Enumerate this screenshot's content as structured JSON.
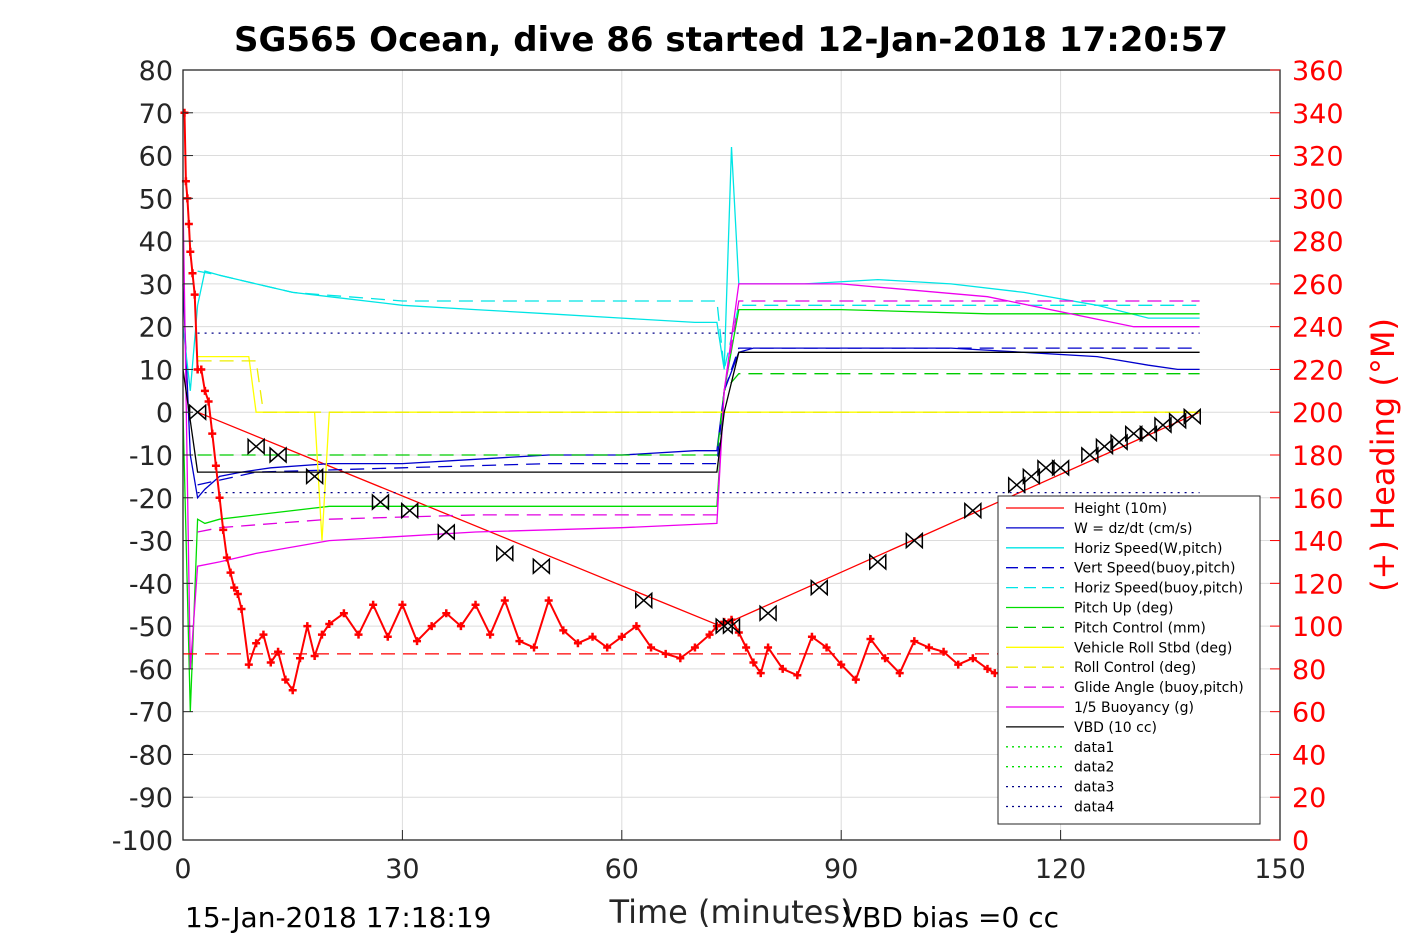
{
  "chart_data": {
    "type": "line",
    "title": "SG565 Ocean, dive 86 started 12-Jan-2018 17:20:57",
    "xlabel": "Time (minutes)",
    "ylabel_right": "(+) Heading (°M)",
    "footer_left": "15-Jan-2018 17:18:19",
    "footer_right": "VBD bias =0 cc",
    "xlim": [
      0,
      150
    ],
    "ylim_left": [
      -100,
      80
    ],
    "ylim_right": [
      0,
      360
    ],
    "x_ticks": [
      "0",
      "30",
      "60",
      "90",
      "120",
      "150"
    ],
    "x_tick_values": [
      0,
      30,
      60,
      90,
      120,
      150
    ],
    "y_left_ticks": [
      "80",
      "70",
      "60",
      "50",
      "40",
      "30",
      "20",
      "10",
      "0",
      "-10",
      "-20",
      "-30",
      "-40",
      "-50",
      "-60",
      "-70",
      "-80",
      "-90",
      "-100"
    ],
    "y_left_tick_values": [
      80,
      70,
      60,
      50,
      40,
      30,
      20,
      10,
      0,
      -10,
      -20,
      -30,
      -40,
      -50,
      -60,
      -70,
      -80,
      -90,
      -100
    ],
    "y_right_ticks": [
      "360",
      "340",
      "320",
      "300",
      "280",
      "260",
      "240",
      "220",
      "200",
      "180",
      "160",
      "140",
      "120",
      "100",
      "80",
      "60",
      "40",
      "20",
      "0"
    ],
    "y_right_tick_values": [
      360,
      340,
      320,
      300,
      280,
      260,
      240,
      220,
      200,
      180,
      160,
      140,
      120,
      100,
      80,
      60,
      40,
      20,
      0
    ],
    "grid": true,
    "legend_position": "bottom-right",
    "colors": {
      "height": "#ff0000",
      "w": "#0000cc",
      "horiz_w": "#00e5e5",
      "vert_buoy": "#0000cc",
      "horiz_buoy": "#00e5e5",
      "pitch_up": "#00dd00",
      "pitch_ctrl": "#00cc00",
      "roll": "#ffff00",
      "roll_ctrl": "#eeee00",
      "glide": "#e000e0",
      "buoyancy": "#ee00ee",
      "vbd": "#000000",
      "data_green": "#00dd00",
      "data_blue": "#000088",
      "heading": "#ff0000",
      "right_axis": "#ff0000"
    },
    "series": [
      {
        "name": "Height (10m)",
        "key": "height",
        "style": "solid",
        "x": [
          2,
          73.5,
          139
        ],
        "y": [
          0,
          -50,
          0
        ]
      },
      {
        "name": "W = dz/dt (cm/s)",
        "key": "w",
        "style": "solid",
        "x": [
          0,
          1,
          2,
          3,
          5,
          8,
          12,
          20,
          30,
          40,
          50,
          60,
          70,
          73,
          74,
          76,
          78,
          85,
          95,
          105,
          115,
          125,
          132,
          136,
          139
        ],
        "y": [
          30,
          -10,
          -20,
          -18,
          -15,
          -14,
          -13,
          -12,
          -12,
          -11,
          -10,
          -10,
          -9,
          -9,
          5,
          14,
          15,
          15,
          15,
          15,
          14,
          13,
          11,
          10,
          10
        ]
      },
      {
        "name": "Horiz Speed(W,pitch)",
        "key": "horiz_w",
        "style": "solid",
        "x": [
          0,
          1,
          2,
          3,
          5,
          10,
          15,
          20,
          30,
          40,
          50,
          60,
          70,
          73,
          74,
          75,
          76,
          78,
          85,
          95,
          105,
          115,
          125,
          132,
          136,
          139
        ],
        "y": [
          20,
          5,
          25,
          33,
          32,
          30,
          28,
          27,
          25,
          24,
          23,
          22,
          21,
          21,
          10,
          62,
          30,
          30,
          30,
          31,
          30,
          28,
          25,
          22,
          22,
          22
        ]
      },
      {
        "name": "Vert Speed(buoy,pitch)",
        "key": "vert_buoy",
        "style": "dashed",
        "x": [
          2,
          10,
          30,
          50,
          73,
          74,
          76,
          139
        ],
        "y": [
          -17,
          -14,
          -13,
          -12,
          -12,
          5,
          15,
          15
        ]
      },
      {
        "name": "Horiz Speed(buoy,pitch)",
        "key": "horiz_buoy",
        "style": "dashed",
        "x": [
          2,
          5,
          15,
          30,
          50,
          73,
          74,
          76,
          100,
          139
        ],
        "y": [
          33,
          32,
          28,
          26,
          26,
          26,
          10,
          25,
          25,
          25
        ]
      },
      {
        "name": "Pitch Up (deg)",
        "key": "pitch_up",
        "style": "solid",
        "x": [
          0,
          1,
          2,
          3,
          5,
          10,
          20,
          30,
          50,
          73,
          74,
          76,
          90,
          110,
          130,
          139
        ],
        "y": [
          0,
          -70,
          -25,
          -26,
          -25,
          -24,
          -22,
          -22,
          -22,
          -22,
          5,
          24,
          24,
          23,
          23,
          23
        ]
      },
      {
        "name": "Pitch Control (mm)",
        "key": "pitch_ctrl",
        "style": "dashed",
        "x": [
          2,
          73,
          74,
          76,
          139
        ],
        "y": [
          -10,
          -10,
          5,
          9,
          9
        ]
      },
      {
        "name": "Vehicle Roll Stbd (deg)",
        "key": "roll",
        "style": "solid",
        "x": [
          2,
          3,
          5,
          9,
          10,
          11,
          17,
          18,
          19,
          20,
          40,
          73,
          74,
          76,
          139
        ],
        "y": [
          13,
          13,
          13,
          13,
          0,
          0,
          0,
          0,
          -30,
          0,
          0,
          0,
          0,
          0,
          0
        ]
      },
      {
        "name": "Roll Control (deg)",
        "key": "roll_ctrl",
        "style": "dashed",
        "x": [
          2,
          10,
          11,
          139
        ],
        "y": [
          12,
          12,
          0,
          0
        ]
      },
      {
        "name": "Glide Angle (buoy,pitch)",
        "key": "glide",
        "style": "dashed",
        "x": [
          2,
          5,
          20,
          40,
          73,
          74,
          76,
          100,
          139
        ],
        "y": [
          -28,
          -27,
          -25,
          -24,
          -24,
          5,
          26,
          26,
          26
        ]
      },
      {
        "name": "1/5 Buoyancy (g)",
        "key": "buoyancy",
        "style": "solid",
        "x": [
          0,
          1,
          2,
          5,
          10,
          20,
          40,
          60,
          73,
          74,
          76,
          90,
          110,
          130,
          139
        ],
        "y": [
          50,
          -60,
          -36,
          -35,
          -33,
          -30,
          -28,
          -27,
          -26,
          5,
          30,
          30,
          27,
          20,
          20
        ]
      },
      {
        "name": "VBD (10 cc)",
        "key": "vbd",
        "style": "solid",
        "x": [
          0,
          2,
          5,
          73,
          74,
          76,
          139
        ],
        "y": [
          10,
          -14,
          -14,
          -14,
          0,
          14,
          14
        ]
      },
      {
        "name": "data1",
        "key": "data_green",
        "style": "dotted",
        "x": [],
        "y": []
      },
      {
        "name": "data2",
        "key": "data_green",
        "style": "dotted",
        "x": [],
        "y": []
      },
      {
        "name": "data3",
        "key": "data_blue",
        "style": "dotted",
        "x": [
          2,
          139
        ],
        "y": [
          18.5,
          18.5
        ]
      },
      {
        "name": "data4",
        "key": "data_blue",
        "style": "dotted",
        "x": [
          2,
          139
        ],
        "y": [
          -18.8,
          -18.8
        ]
      }
    ],
    "reference_lines": [
      {
        "key": "height",
        "style": "dashed",
        "axis": "right",
        "x": [
          0,
          139
        ],
        "y": [
          87,
          87
        ]
      }
    ],
    "heading": {
      "axis": "right",
      "x": [
        0.2,
        0.4,
        0.6,
        0.8,
        1,
        1.3,
        1.6,
        2,
        2.5,
        3,
        3.5,
        4,
        4.5,
        5,
        5.5,
        6,
        6.5,
        7,
        7.5,
        8,
        9,
        10,
        11,
        12,
        13,
        14,
        15,
        16,
        17,
        18,
        19,
        20,
        22,
        24,
        26,
        28,
        30,
        32,
        34,
        36,
        38,
        40,
        42,
        44,
        46,
        48,
        50,
        52,
        54,
        56,
        58,
        60,
        62,
        64,
        66,
        68,
        70,
        72,
        73,
        74,
        75,
        76,
        77,
        78,
        79,
        80,
        82,
        84,
        86,
        88,
        90,
        92,
        94,
        96,
        98,
        100,
        102,
        104,
        106,
        108,
        110,
        111
      ],
      "y": [
        340,
        308,
        300,
        288,
        275,
        265,
        255,
        220,
        220,
        210,
        205,
        190,
        175,
        160,
        145,
        132,
        125,
        118,
        115,
        108,
        82,
        92,
        96,
        83,
        88,
        75,
        70,
        85,
        100,
        86,
        96,
        101,
        106,
        96,
        110,
        95,
        110,
        93,
        100,
        106,
        100,
        110,
        96,
        112,
        93,
        90,
        112,
        98,
        92,
        95,
        90,
        95,
        100,
        90,
        87,
        85,
        90,
        96,
        100,
        102,
        103,
        97,
        90,
        83,
        78,
        90,
        80,
        77,
        95,
        90,
        82,
        75,
        94,
        85,
        78,
        93,
        90,
        88,
        82,
        85,
        80,
        78
      ]
    },
    "markers": {
      "axis": "left",
      "x": [
        2,
        10,
        13,
        18,
        27,
        31,
        36,
        44,
        49,
        63,
        74,
        75,
        80,
        87,
        95,
        100,
        108,
        114,
        116,
        118,
        120,
        124,
        126,
        128,
        130,
        132,
        134,
        136,
        138
      ],
      "y": [
        0,
        -8,
        -10,
        -15,
        -21,
        -23,
        -28,
        -33,
        -36,
        -44,
        -50,
        -50,
        -47,
        -41,
        -35,
        -30,
        -23,
        -17,
        -15,
        -13,
        -13,
        -10,
        -8,
        -7,
        -5,
        -5,
        -3,
        -2,
        -1
      ]
    }
  }
}
